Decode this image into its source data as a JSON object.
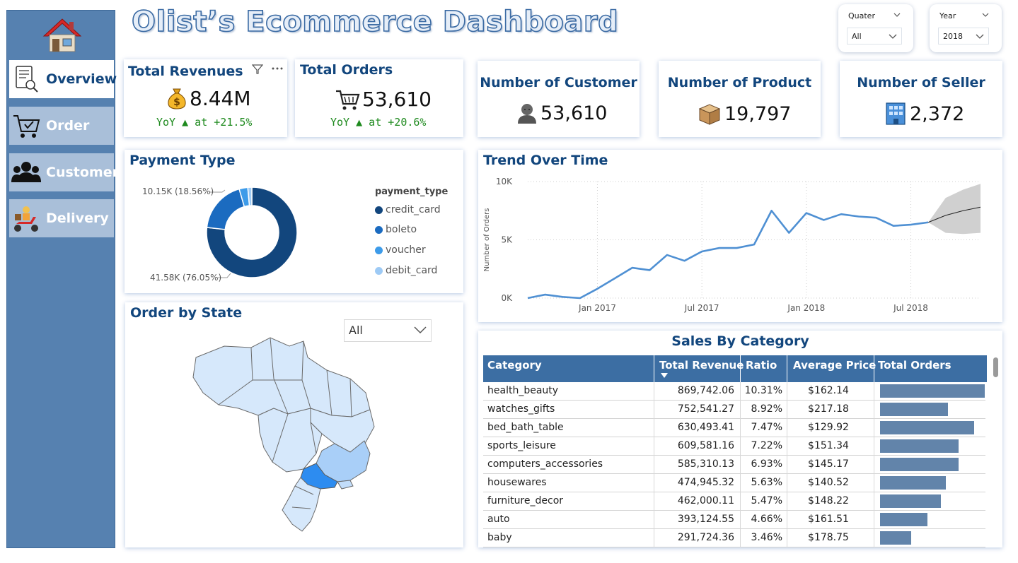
{
  "title": "Olist’s Ecommerce Dashboard",
  "nav": {
    "home_icon": "home-icon",
    "items": [
      {
        "label": "Overview",
        "icon": "report-magnifier-icon",
        "active": true
      },
      {
        "label": "Order",
        "icon": "shopping-cart-icon",
        "active": false
      },
      {
        "label": "Customer",
        "icon": "users-icon",
        "active": false
      },
      {
        "label": "Delivery",
        "icon": "delivery-scooter-icon",
        "active": false
      }
    ]
  },
  "slicers": {
    "quarter": {
      "label": "Quater",
      "value": "All"
    },
    "year": {
      "label": "Year",
      "value": "2018"
    }
  },
  "kpis": {
    "revenue": {
      "title": "Total Revenues",
      "value": "8.44M",
      "yoy": "YoY ▲ at +21.5%",
      "icon": "money-bag-icon"
    },
    "orders": {
      "title": "Total Orders",
      "value": "53,610",
      "yoy": "YoY ▲ at +20.6%",
      "icon": "shopping-cart-icon"
    },
    "customers": {
      "title": "Number of Customer",
      "value": "53,610",
      "icon": "person-icon"
    },
    "products": {
      "title": "Number of Product",
      "value": "19,797",
      "icon": "package-icon"
    },
    "sellers": {
      "title": "Number of Seller",
      "value": "2,372",
      "icon": "office-building-icon"
    }
  },
  "payment": {
    "title": "Payment Type",
    "legend_title": "payment_type",
    "label_top": "10.15K (18.56%)",
    "label_bottom": "41.58K (76.05%)",
    "colors": {
      "credit_card": "#12467d",
      "boleto": "#1b6bc0",
      "voucher": "#3d9be9",
      "debit_card": "#9dcaf5"
    }
  },
  "map": {
    "title": "Order by State",
    "dropdown_value": "All"
  },
  "trend": {
    "title": "Trend Over Time",
    "ylabel": "Number of Orders"
  },
  "sales": {
    "title": "Sales By Category",
    "headers": [
      "Category",
      "Total Revenue",
      "Ratio",
      "Average Price",
      "Total Orders"
    ],
    "rows": [
      {
        "category": "health_beauty",
        "revenue": "869,742.06",
        "ratio": "10.31%",
        "avg": "$162.14",
        "orders_frac": 1.0
      },
      {
        "category": "watches_gifts",
        "revenue": "752,541.27",
        "ratio": "8.92%",
        "avg": "$217.18",
        "orders_frac": 0.65
      },
      {
        "category": "bed_bath_table",
        "revenue": "630,493.41",
        "ratio": "7.47%",
        "avg": "$129.92",
        "orders_frac": 0.9
      },
      {
        "category": "sports_leisure",
        "revenue": "609,581.16",
        "ratio": "7.22%",
        "avg": "$151.34",
        "orders_frac": 0.75
      },
      {
        "category": "computers_accessories",
        "revenue": "585,310.13",
        "ratio": "6.93%",
        "avg": "$145.17",
        "orders_frac": 0.75
      },
      {
        "category": "housewares",
        "revenue": "474,945.32",
        "ratio": "5.63%",
        "avg": "$140.52",
        "orders_frac": 0.63
      },
      {
        "category": "furniture_decor",
        "revenue": "462,000.11",
        "ratio": "5.47%",
        "avg": "$148.22",
        "orders_frac": 0.58
      },
      {
        "category": "auto",
        "revenue": "393,124.55",
        "ratio": "4.66%",
        "avg": "$161.51",
        "orders_frac": 0.45
      },
      {
        "category": "baby",
        "revenue": "291,724.36",
        "ratio": "3.46%",
        "avg": "$178.75",
        "orders_frac": 0.3
      }
    ]
  },
  "chart_data": [
    {
      "type": "pie",
      "title": "Payment Type",
      "categories": [
        "credit_card",
        "boleto",
        "voucher",
        "debit_card"
      ],
      "values": [
        41580,
        10150,
        1670,
        780
      ],
      "legend": "right"
    },
    {
      "type": "line",
      "title": "Trend Over Time",
      "xlabel": "",
      "ylabel": "Number of Orders",
      "x": [
        "2016-09",
        "2016-10",
        "2016-11",
        "2016-12",
        "2017-01",
        "2017-02",
        "2017-03",
        "2017-04",
        "2017-05",
        "2017-06",
        "2017-07",
        "2017-08",
        "2017-09",
        "2017-10",
        "2017-11",
        "2017-12",
        "2018-01",
        "2018-02",
        "2018-03",
        "2018-04",
        "2018-05",
        "2018-06",
        "2018-07",
        "2018-08"
      ],
      "series": [
        {
          "values": [
            0,
            300,
            100,
            0,
            800,
            1700,
            2600,
            2400,
            3700,
            3200,
            4000,
            4300,
            4300,
            4600,
            7500,
            5600,
            7300,
            6700,
            7200,
            7000,
            6900,
            6200,
            6300,
            6500
          ]
        }
      ],
      "forecast": {
        "x": [
          "2018-08",
          "2018-09",
          "2018-10",
          "2018-11"
        ],
        "values": [
          6500,
          7100,
          7500,
          7800
        ],
        "lower": [
          6500,
          5600,
          5500,
          5600
        ],
        "upper": [
          6500,
          8600,
          9300,
          9800
        ]
      },
      "x_ticks": [
        "Jan 2017",
        "Jul 2017",
        "Jan 2018",
        "Jul 2018"
      ],
      "y_ticks": [
        "0K",
        "5K",
        "10K"
      ],
      "ylim": [
        0,
        10000
      ],
      "grid": true
    },
    {
      "type": "table",
      "title": "Sales By Category",
      "columns": [
        "Category",
        "Total Revenue",
        "Ratio",
        "Average Price",
        "Total Orders"
      ]
    }
  ]
}
